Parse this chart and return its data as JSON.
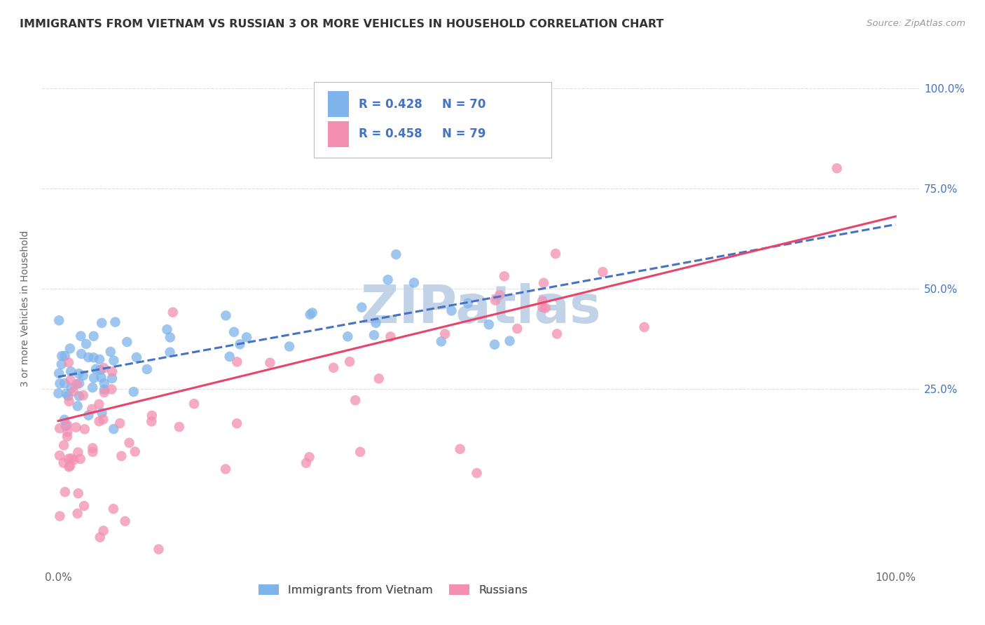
{
  "title": "IMMIGRANTS FROM VIETNAM VS RUSSIAN 3 OR MORE VEHICLES IN HOUSEHOLD CORRELATION CHART",
  "source": "Source: ZipAtlas.com",
  "ylabel": "3 or more Vehicles in Household",
  "ytick_labels": [
    "25.0%",
    "50.0%",
    "75.0%",
    "100.0%"
  ],
  "ytick_values": [
    25,
    50,
    75,
    100
  ],
  "xlim": [
    -2,
    103
  ],
  "ylim": [
    -20,
    110
  ],
  "legend_vietnam": "Immigrants from Vietnam",
  "legend_russian": "Russians",
  "color_vietnam": "#7EB4EA",
  "color_russian": "#F48FB1",
  "trendline_vietnam": "#4472C4",
  "trendline_russian": "#E8436A",
  "watermark_color": "#C8D8EC",
  "background_color": "#FFFFFF",
  "grid_color": "#DDDDDD",
  "title_color": "#333333",
  "axis_label_color": "#4472C4",
  "legend_R_color": "#4472C4",
  "trendline_v_start": 28.0,
  "trendline_v_end": 66.0,
  "trendline_r_start": 17.0,
  "trendline_r_end": 68.0
}
